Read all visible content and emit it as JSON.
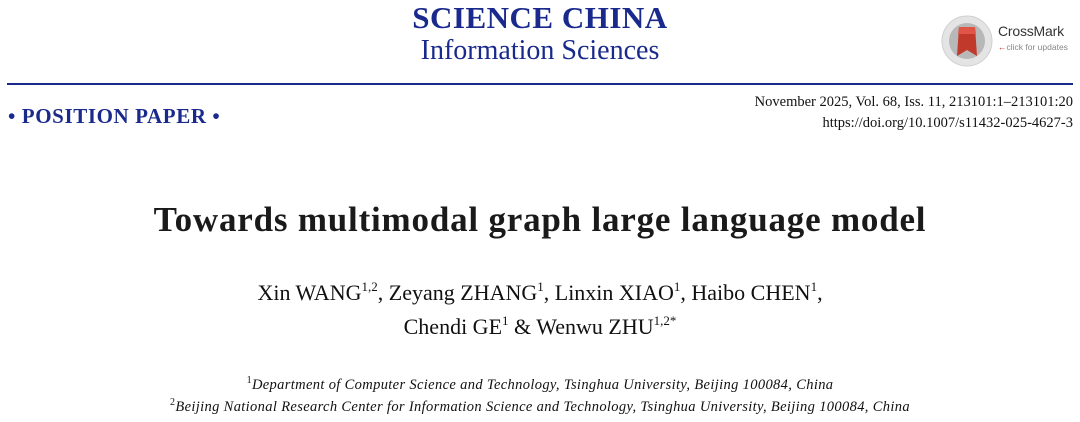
{
  "header": {
    "journal_name": "SCIENCE CHINA",
    "journal_subtitle": "Information Sciences",
    "crossmark": {
      "label": "CrossMark",
      "sublabel": "click for updates",
      "icon": "crossmark-icon"
    }
  },
  "paper_type": "• POSITION PAPER •",
  "publication": {
    "line": "November 2025, Vol. 68, Iss. 11, 213101:1–213101:20",
    "doi": "https://doi.org/10.1007/s11432-025-4627-3"
  },
  "title": "Towards multimodal graph large language model",
  "authors": {
    "line1": [
      {
        "name": "Xin WANG",
        "sup": "1,2",
        "sep": ", "
      },
      {
        "name": "Zeyang ZHANG",
        "sup": "1",
        "sep": ", "
      },
      {
        "name": "Linxin XIAO",
        "sup": "1",
        "sep": ", "
      },
      {
        "name": "Haibo CHEN",
        "sup": "1",
        "sep": ","
      }
    ],
    "line2": [
      {
        "name": "Chendi GE",
        "sup": "1",
        "sep": " & "
      },
      {
        "name": "Wenwu ZHU",
        "sup": "1,2*",
        "sep": ""
      }
    ]
  },
  "affiliations": [
    {
      "mark": "1",
      "text": "Department of Computer Science and Technology, Tsinghua University, Beijing 100084, China"
    },
    {
      "mark": "2",
      "text": "Beijing National Research Center for Information Science and Technology, Tsinghua University, Beijing 100084, China"
    }
  ],
  "colors": {
    "brand_blue": "#1a2a8c",
    "crossmark_red": "#c0392b"
  }
}
